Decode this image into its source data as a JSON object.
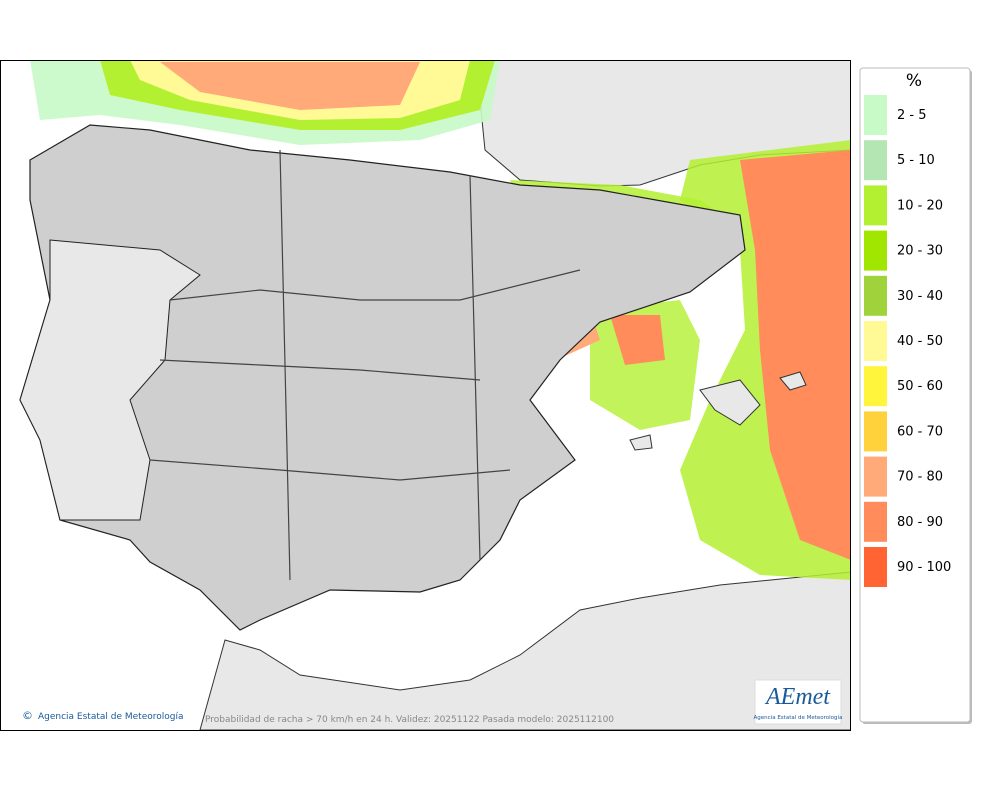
{
  "legend": {
    "title": "%",
    "items": [
      {
        "label": "2 - 5",
        "color": "#c8fac8"
      },
      {
        "label": "5 - 10",
        "color": "#b4e6b4"
      },
      {
        "label": "10 - 20",
        "color": "#b4f032"
      },
      {
        "label": "20 - 30",
        "color": "#a0e600"
      },
      {
        "label": "30 - 40",
        "color": "#a0d23c"
      },
      {
        "label": "40 - 50",
        "color": "#fffa96"
      },
      {
        "label": "50 - 60",
        "color": "#fff53c"
      },
      {
        "label": "60 - 70",
        "color": "#ffd23c"
      },
      {
        "label": "70 - 80",
        "color": "#ffaa78"
      },
      {
        "label": "80 - 90",
        "color": "#ff8c5a"
      },
      {
        "label": "90 - 100",
        "color": "#ff6432"
      }
    ]
  },
  "footer": {
    "credit": "Agencia Estatal de Meteorología",
    "caption": "Probabilidad de racha > 70 km/h en 24 h. Validez: 20251122 Pasada modelo: 2025112100"
  },
  "logo": {
    "text": "AEmet",
    "subtitle": "Agencia Estatal de Meteorología"
  }
}
